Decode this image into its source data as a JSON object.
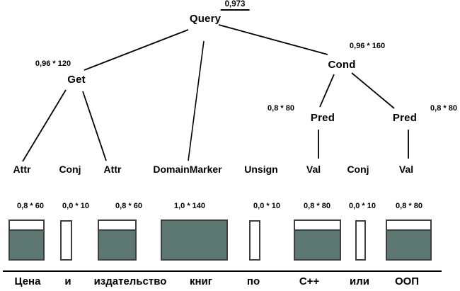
{
  "diagram": {
    "root": {
      "label": "Query",
      "score": "0,973"
    },
    "nodes": {
      "get": {
        "label": "Get",
        "score": "0,96 * 120"
      },
      "cond": {
        "label": "Cond",
        "score": "0,96 * 160"
      },
      "pred_left": {
        "label": "Pred",
        "score": "0,8 * 80"
      },
      "pred_right": {
        "label": "Pred",
        "score": "0,8 * 80"
      }
    },
    "leaves": [
      {
        "label": "Attr",
        "score": "0,8 * 60",
        "fill": 0.78,
        "word": "Цена"
      },
      {
        "label": "Conj",
        "score": "0,0 * 10",
        "fill": 0.0,
        "word": "и"
      },
      {
        "label": "Attr",
        "score": "0,8 * 60",
        "fill": 0.78,
        "word": "издательство"
      },
      {
        "label": "DomainMarker",
        "score": "1,0 * 140",
        "fill": 1.0,
        "word": "книг"
      },
      {
        "label": "Unsign",
        "score": "0,0 * 10",
        "fill": 0.0,
        "word": "по"
      },
      {
        "label": "Val",
        "score": "0,8 * 80",
        "fill": 0.78,
        "word": "C++"
      },
      {
        "label": "Conj",
        "score": "0,0 * 10",
        "fill": 0.0,
        "word": "или"
      },
      {
        "label": "Val",
        "score": "0,8 * 80",
        "fill": 0.78,
        "word": "ООП"
      }
    ],
    "colors": {
      "box_fill": "#5d7872",
      "box_border": "#3f3f3f",
      "edge": "#000000"
    }
  }
}
